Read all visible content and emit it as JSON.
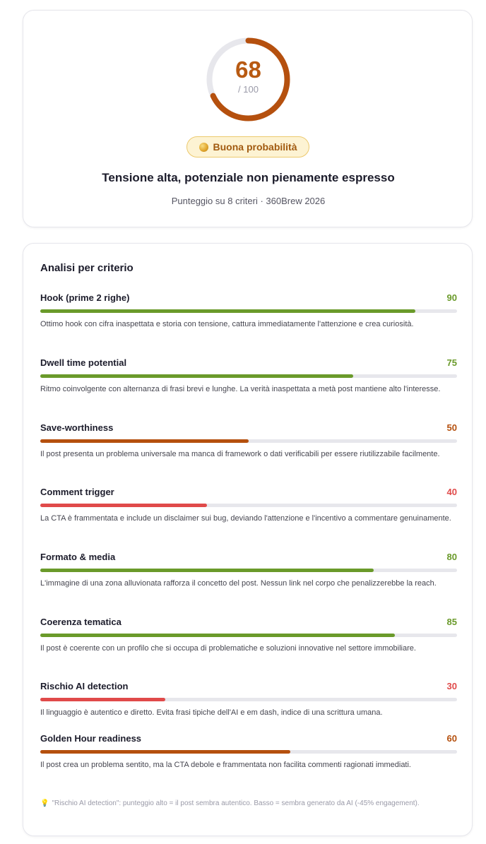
{
  "score": {
    "value": "68",
    "value_num": 68,
    "max_label": "/ 100",
    "max_num": 100,
    "ring_color": "#b5500e",
    "badge_label": "Buona probabilità",
    "badge_icon": "gold-coin-icon",
    "headline": "Tensione alta, potenziale non pienamente espresso",
    "subtitle": "Punteggio su 8 criteri · 360Brew 2026"
  },
  "analysis": {
    "title": "Analisi per criterio",
    "criteria": [
      {
        "name": "Hook (prime 2 righe)",
        "score": "90",
        "value": 90,
        "color": "#6a9a2a",
        "description": "Ottimo hook con cifra inaspettata e storia con tensione, cattura immediatamente l'attenzione e crea curiosità."
      },
      {
        "name": "Dwell time potential",
        "score": "75",
        "value": 75,
        "color": "#6a9a2a",
        "description": "Ritmo coinvolgente con alternanza di frasi brevi e lunghe. La verità inaspettata a metà post mantiene alto l'interesse."
      },
      {
        "name": "Save-worthiness",
        "score": "50",
        "value": 50,
        "color": "#b5500e",
        "description": "Il post presenta un problema universale ma manca di framework o dati verificabili per essere riutilizzabile facilmente."
      },
      {
        "name": "Comment trigger",
        "score": "40",
        "value": 40,
        "color": "#e04a4a",
        "description": "La CTA è frammentata e include un disclaimer sui bug, deviando l'attenzione e l'incentivo a commentare genuinamente."
      },
      {
        "name": "Formato & media",
        "score": "80",
        "value": 80,
        "color": "#6a9a2a",
        "description": "L'immagine di una zona alluvionata rafforza il concetto del post. Nessun link nel corpo che penalizzerebbe la reach."
      },
      {
        "name": "Coerenza tematica",
        "score": "85",
        "value": 85,
        "color": "#6a9a2a",
        "description": "Il post è coerente con un profilo che si occupa di problematiche e soluzioni innovative nel settore immobiliare."
      },
      {
        "name": "Rischio AI detection",
        "score": "30",
        "value": 30,
        "color": "#e04a4a",
        "description": "Il linguaggio è autentico e diretto. Evita frasi tipiche dell'AI e em dash, indice di una scrittura umana."
      },
      {
        "name": "Golden Hour readiness",
        "score": "60",
        "value": 60,
        "color": "#b5500e",
        "description": "Il post crea un problema sentito, ma la CTA debole e frammentata non facilita commenti ragionati immediati."
      }
    ],
    "footnote_icon": "lightbulb-icon",
    "footnote": "\"Rischio AI detection\": punteggio alto = il post sembra autentico. Basso = sembra generato da AI (-45% engagement)."
  }
}
